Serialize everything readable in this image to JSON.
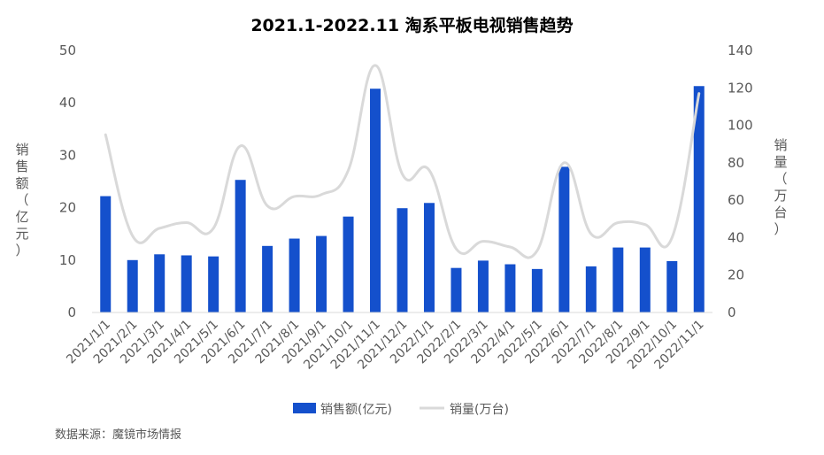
{
  "chart_data": {
    "type": "bar+line",
    "title": "2021.1-2022.11 淘系平板电视销售趋势",
    "ylabel_left": "销售额（亿元）",
    "ylabel_right": "销量（万台）",
    "ylim_left": [
      0,
      50
    ],
    "ylim_right": [
      0,
      140
    ],
    "yticks_left": [
      "0",
      "10",
      "20",
      "30",
      "40",
      "50"
    ],
    "yticks_right": [
      "0",
      "20",
      "40",
      "60",
      "80",
      "100",
      "120",
      "140"
    ],
    "grid": false,
    "legend_position": "bottom",
    "categories": [
      "2021/1/1",
      "2021/2/1",
      "2021/3/1",
      "2021/4/1",
      "2021/5/1",
      "2021/6/1",
      "2021/7/1",
      "2021/8/1",
      "2021/9/1",
      "2021/10/1",
      "2021/11/1",
      "2021/12/1",
      "2022/1/1",
      "2022/2/1",
      "2022/3/1",
      "2022/4/1",
      "2022/5/1",
      "2022/6/1",
      "2022/7/1",
      "2022/8/1",
      "2022/9/1",
      "2022/10/1",
      "2022/11/1"
    ],
    "series": [
      {
        "name": "销售额(亿元)",
        "type": "bar",
        "axis": "left",
        "color": "#1450CC",
        "values": [
          22.2,
          10.0,
          11.1,
          10.9,
          10.7,
          25.3,
          12.7,
          14.1,
          14.6,
          18.3,
          42.7,
          19.9,
          20.9,
          8.5,
          9.9,
          9.2,
          8.3,
          27.8,
          8.8,
          12.4,
          12.4,
          9.8,
          43.2
        ]
      },
      {
        "name": "销量(万台)",
        "type": "line",
        "axis": "right",
        "color": "#D9D9D9",
        "values": [
          95,
          41,
          45,
          48,
          45,
          89,
          57,
          62,
          63,
          76,
          132,
          74,
          76,
          34,
          38,
          35,
          33,
          80,
          42,
          48,
          47,
          40,
          117
        ]
      }
    ]
  },
  "source_text": "数据来源：魔镜市场情报"
}
